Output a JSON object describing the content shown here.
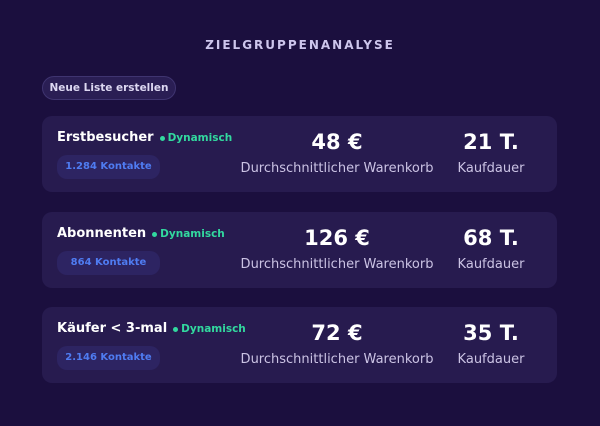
{
  "header": {
    "title": "ZIELGRUPPENANALYSE",
    "button": "Neue Liste erstellen"
  },
  "segments": [
    {
      "name": "Erstbesucher",
      "tag": "Dynamisch",
      "contacts": "1.284 Kontakte",
      "cart": "48 €",
      "cart_label": "Durchschnittlicher Warenkorb",
      "duration": "21 T.",
      "duration_label": "Kaufdauer"
    },
    {
      "name": "Abonnenten",
      "tag": "Dynamisch",
      "contacts": "864 Kontakte",
      "cart": "126 €",
      "cart_label": "Durchschnittlicher Warenkorb",
      "duration": "68 T.",
      "duration_label": "Kaufdauer"
    },
    {
      "name": "Käufer < 3-mal",
      "tag": "Dynamisch",
      "contacts": "2.146 Kontakte",
      "cart": "72 €",
      "cart_label": "Durchschnittlicher Warenkorb",
      "duration": "35 T.",
      "duration_label": "Kaufdauer"
    }
  ]
}
